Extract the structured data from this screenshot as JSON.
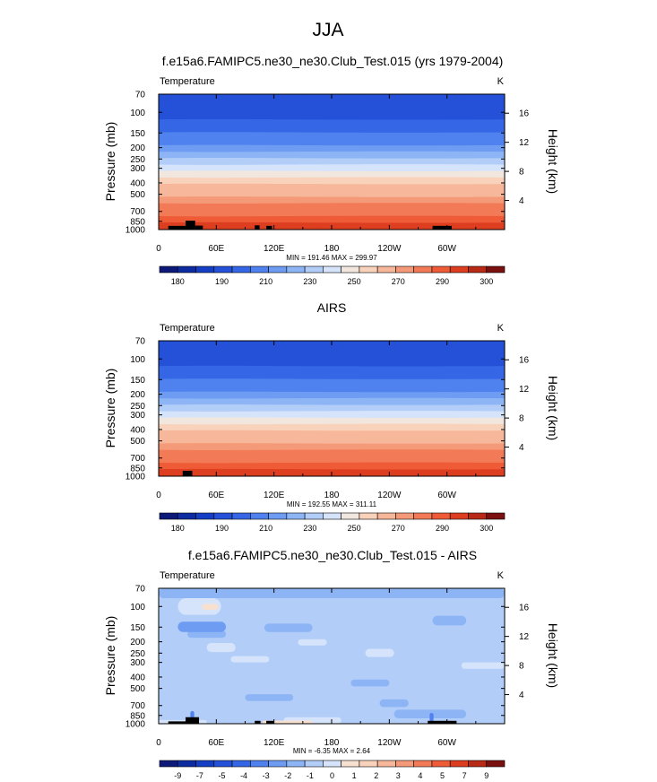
{
  "page": {
    "title": "JJA"
  },
  "palettes": {
    "temperature": [
      "#0c1978",
      "#0d2ca0",
      "#143fc4",
      "#2451d8",
      "#3466e6",
      "#4f82ef",
      "#6d9cf2",
      "#8db4f5",
      "#b1cdf8",
      "#d5e4fb",
      "#f2e7de",
      "#f9d2bb",
      "#f7b79a",
      "#f59a78",
      "#f27a56",
      "#ee5b36",
      "#dc3e1f",
      "#b82a16",
      "#7a1010"
    ],
    "difference": [
      "#0c1978",
      "#0d2ca0",
      "#143fc4",
      "#2451d8",
      "#3466e6",
      "#4f82ef",
      "#6d9cf2",
      "#8db4f5",
      "#b1cdf8",
      "#d5e4fb",
      "#f7e0cf",
      "#f9d2bb",
      "#f7b79a",
      "#f59a78",
      "#f27a56",
      "#ee5b36",
      "#dc3e1f",
      "#b82a16",
      "#7a1010"
    ]
  },
  "chart_data": [
    {
      "type": "heatmap",
      "title": "f.e15a6.FAMIPC5.ne30_ne30.Club_Test.015 (yrs 1979-2004)",
      "left_label": "Temperature",
      "right_label": "K",
      "ylabel": "Pressure (mb)",
      "ylabel_right": "Height (km)",
      "x_ticks": [
        "0",
        "60E",
        "120E",
        "180",
        "120W",
        "60W"
      ],
      "pressure_ticks": [
        "70",
        "100",
        "150",
        "200",
        "250",
        "300",
        "400",
        "500",
        "700",
        "850",
        "1000"
      ],
      "height_ticks": [
        "16",
        "12",
        "8",
        "4"
      ],
      "stats": "MIN = 191.46  MAX = 299.97",
      "palette": "temperature",
      "colorbar_labels": [
        "180",
        "190",
        "210",
        "230",
        "250",
        "270",
        "290",
        "300"
      ],
      "band_levels": [
        3,
        3,
        3,
        3,
        4,
        4,
        5,
        5,
        6,
        7,
        8,
        9,
        10,
        11,
        12,
        12,
        13,
        14,
        14,
        15,
        16
      ],
      "terrain": [
        {
          "lon": [
            10,
            28
          ],
          "top": 930
        },
        {
          "lon": [
            28,
            38
          ],
          "top": 840
        },
        {
          "lon": [
            38,
            46
          ],
          "top": 925
        },
        {
          "lon": [
            100,
            105
          ],
          "top": 920
        },
        {
          "lon": [
            112,
            118
          ],
          "top": 930
        },
        {
          "lon": [
            285,
            305
          ],
          "top": 930
        }
      ]
    },
    {
      "type": "heatmap",
      "title": "AIRS",
      "left_label": "Temperature",
      "right_label": "K",
      "ylabel": "Pressure (mb)",
      "ylabel_right": "Height (km)",
      "x_ticks": [
        "0",
        "60E",
        "120E",
        "180",
        "120W",
        "60W"
      ],
      "pressure_ticks": [
        "70",
        "100",
        "150",
        "200",
        "250",
        "300",
        "400",
        "500",
        "700",
        "850",
        "1000"
      ],
      "height_ticks": [
        "16",
        "12",
        "8",
        "4"
      ],
      "stats": "MIN = 192.55  MAX = 311.11",
      "palette": "temperature",
      "colorbar_labels": [
        "180",
        "190",
        "210",
        "230",
        "250",
        "270",
        "290",
        "300"
      ],
      "band_levels": [
        3,
        3,
        3,
        3,
        4,
        4,
        5,
        5,
        6,
        7,
        8,
        9,
        10,
        11,
        12,
        12,
        13,
        14,
        14,
        15,
        16
      ],
      "terrain": [
        {
          "lon": [
            25,
            35
          ],
          "top": 900
        }
      ]
    },
    {
      "type": "heatmap",
      "title": "f.e15a6.FAMIPC5.ne30_ne30.Club_Test.015 - AIRS",
      "left_label": "Temperature",
      "right_label": "K",
      "ylabel": "Pressure (mb)",
      "ylabel_right": "Height (km)",
      "x_ticks": [
        "0",
        "60E",
        "120E",
        "180",
        "120W",
        "60W"
      ],
      "pressure_ticks": [
        "70",
        "100",
        "150",
        "200",
        "250",
        "300",
        "400",
        "500",
        "700",
        "850",
        "1000"
      ],
      "height_ticks": [
        "16",
        "12",
        "8",
        "4"
      ],
      "stats": "MIN = -6.35  MAX = 2.64",
      "palette": "difference",
      "colorbar_labels": [
        "-9",
        "-7",
        "-5",
        "-4",
        "-3",
        "-2",
        "-1",
        "0",
        "1",
        "2",
        "3",
        "4",
        "5",
        "7",
        "9"
      ],
      "background_level": 8,
      "features": [
        {
          "level": 7,
          "lon": [
            0,
            360
          ],
          "p": [
            70,
            85
          ]
        },
        {
          "level": 9,
          "lon": [
            20,
            65
          ],
          "p": [
            85,
            118
          ]
        },
        {
          "level": 10,
          "lon": [
            45,
            62
          ],
          "p": [
            95,
            107
          ]
        },
        {
          "level": 7,
          "lon": [
            30,
            70
          ],
          "p": [
            160,
            185
          ]
        },
        {
          "level": 6,
          "lon": [
            20,
            70
          ],
          "p": [
            135,
            165
          ]
        },
        {
          "level": 7,
          "lon": [
            110,
            160
          ],
          "p": [
            140,
            165
          ]
        },
        {
          "level": 7,
          "lon": [
            285,
            320
          ],
          "p": [
            120,
            145
          ]
        },
        {
          "level": 9,
          "lon": [
            145,
            175
          ],
          "p": [
            190,
            215
          ]
        },
        {
          "level": 9,
          "lon": [
            50,
            80
          ],
          "p": [
            205,
            245
          ]
        },
        {
          "level": 9,
          "lon": [
            75,
            115
          ],
          "p": [
            265,
            300
          ]
        },
        {
          "level": 9,
          "lon": [
            215,
            245
          ],
          "p": [
            230,
            270
          ]
        },
        {
          "level": 9,
          "lon": [
            315,
            360
          ],
          "p": [
            300,
            340
          ]
        },
        {
          "level": 7,
          "lon": [
            200,
            240
          ],
          "p": [
            420,
            480
          ]
        },
        {
          "level": 7,
          "lon": [
            90,
            140
          ],
          "p": [
            560,
            640
          ]
        },
        {
          "level": 9,
          "lon": [
            130,
            190
          ],
          "p": [
            880,
            1000
          ]
        },
        {
          "level": 10,
          "lon": [
            108,
            160
          ],
          "p": [
            940,
            1000
          ]
        },
        {
          "level": 9,
          "lon": [
            0,
            50
          ],
          "p": [
            930,
            1000
          ]
        },
        {
          "level": 7,
          "lon": [
            245,
            320
          ],
          "p": [
            760,
            900
          ]
        },
        {
          "level": 7,
          "lon": [
            230,
            260
          ],
          "p": [
            620,
            720
          ]
        },
        {
          "level": 5,
          "lon": [
            282,
            286
          ],
          "p": [
            810,
            960
          ]
        },
        {
          "level": 5,
          "lon": [
            33,
            37
          ],
          "p": [
            780,
            900
          ]
        }
      ],
      "terrain": [
        {
          "lon": [
            10,
            28
          ],
          "top": 955
        },
        {
          "lon": [
            28,
            42
          ],
          "top": 880
        },
        {
          "lon": [
            100,
            106
          ],
          "top": 945
        },
        {
          "lon": [
            112,
            120
          ],
          "top": 945
        },
        {
          "lon": [
            280,
            310
          ],
          "top": 945
        }
      ]
    }
  ]
}
